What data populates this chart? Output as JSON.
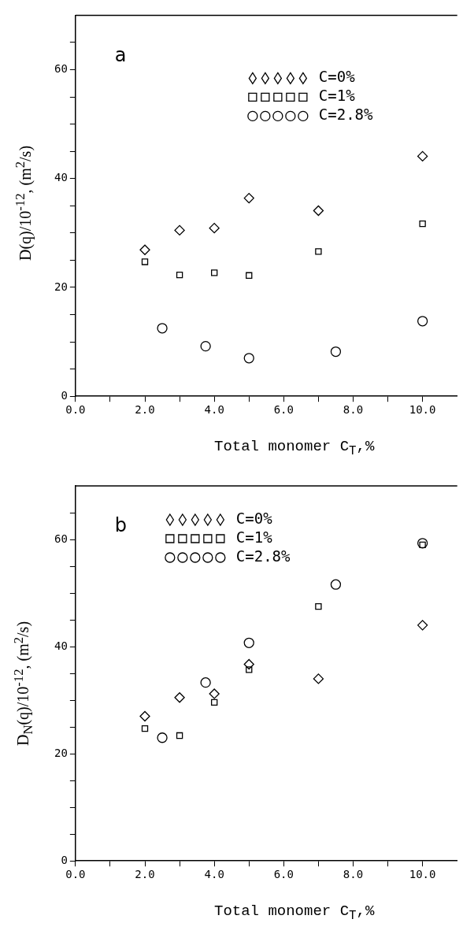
{
  "chart_data": [
    {
      "type": "scatter",
      "xlabel": "Total monomer C$_{T}$,%",
      "ylabel": "D(q)/10$^{-12}$, (m$^{2}$/s)",
      "annotations": [
        "a"
      ],
      "grid": false,
      "legend": "top right",
      "xlim": [
        0,
        11
      ],
      "xticks": [
        {
          "value": 0,
          "label": "0.0"
        },
        {
          "value": 1,
          "label": null
        },
        {
          "value": 2,
          "label": "2.0"
        },
        {
          "value": 3,
          "label": null
        },
        {
          "value": 4,
          "label": "4.0"
        },
        {
          "value": 5,
          "label": null
        },
        {
          "value": 6,
          "label": "6.0"
        },
        {
          "value": 7,
          "label": null
        },
        {
          "value": 8,
          "label": "8.0"
        },
        {
          "value": 9,
          "label": null
        },
        {
          "value": 10,
          "label": "10.0"
        }
      ],
      "ylim": [
        0,
        70
      ],
      "yticks": [
        0,
        {
          "value": 5,
          "label": null
        },
        {
          "value": 10,
          "label": null
        },
        {
          "value": 15,
          "label": null
        },
        20,
        {
          "value": 25,
          "label": null
        },
        {
          "value": 30,
          "label": null
        },
        {
          "value": 35,
          "label": null
        },
        40,
        {
          "value": 45,
          "label": null
        },
        {
          "value": 50,
          "label": null
        },
        {
          "value": 55,
          "label": null
        },
        60,
        {
          "value": 65,
          "label": null
        }
      ],
      "series": [
        {
          "name": "C=0%",
          "color": "#000000",
          "marker": "diamond",
          "x": [
            2,
            3,
            4,
            5,
            7,
            10
          ],
          "values": [
            26.9,
            30.5,
            30.9,
            36.4,
            34.1,
            44.1
          ]
        },
        {
          "name": "C=1%",
          "color": "#000000",
          "marker": "square",
          "x": [
            2,
            3,
            4,
            5,
            7,
            10
          ],
          "values": [
            24.7,
            22.3,
            22.7,
            22.2,
            26.6,
            31.7
          ]
        },
        {
          "name": "C=2.8%",
          "color": "#000000",
          "marker": "circle",
          "x": [
            2.5,
            3.75,
            5,
            7.5,
            10
          ],
          "values": [
            12.5,
            9.2,
            7.0,
            8.2,
            13.8
          ]
        }
      ]
    },
    {
      "type": "scatter",
      "xlabel": "Total monomer C$_{T}$,%",
      "ylabel": "D$_{N}$(q)/10$^{-12}$, (m$^{2}$/s)",
      "annotations": [
        "b"
      ],
      "grid": false,
      "legend": "top left",
      "xlim": [
        0,
        11
      ],
      "xticks": [
        {
          "value": 0,
          "label": "0.0"
        },
        {
          "value": 1,
          "label": null
        },
        {
          "value": 2,
          "label": "2.0"
        },
        {
          "value": 3,
          "label": null
        },
        {
          "value": 4,
          "label": "4.0"
        },
        {
          "value": 5,
          "label": null
        },
        {
          "value": 6,
          "label": "6.0"
        },
        {
          "value": 7,
          "label": null
        },
        {
          "value": 8,
          "label": "8.0"
        },
        {
          "value": 9,
          "label": null
        },
        {
          "value": 10,
          "label": "10.0"
        }
      ],
      "ylim": [
        0,
        70
      ],
      "yticks": [
        0,
        {
          "value": 5,
          "label": null
        },
        {
          "value": 10,
          "label": null
        },
        {
          "value": 15,
          "label": null
        },
        20,
        {
          "value": 25,
          "label": null
        },
        {
          "value": 30,
          "label": null
        },
        {
          "value": 35,
          "label": null
        },
        40,
        {
          "value": 45,
          "label": null
        },
        {
          "value": 50,
          "label": null
        },
        {
          "value": 55,
          "label": null
        },
        60,
        {
          "value": 65,
          "label": null
        }
      ],
      "series": [
        {
          "name": "C=0%",
          "color": "#000000",
          "marker": "diamond",
          "x": [
            2,
            3,
            4,
            5,
            7,
            10
          ],
          "values": [
            27.0,
            30.5,
            31.2,
            36.7,
            34.0,
            44.0
          ]
        },
        {
          "name": "C=1%",
          "color": "#000000",
          "marker": "square",
          "x": [
            2,
            3,
            4,
            5,
            7,
            10
          ],
          "values": [
            24.7,
            23.4,
            29.6,
            35.7,
            47.5,
            59.0
          ]
        },
        {
          "name": "C=2.8%",
          "color": "#000000",
          "marker": "circle",
          "x": [
            2.5,
            3.75,
            5,
            7.5,
            10
          ],
          "values": [
            23.0,
            33.3,
            40.7,
            51.6,
            59.3
          ]
        }
      ]
    }
  ]
}
